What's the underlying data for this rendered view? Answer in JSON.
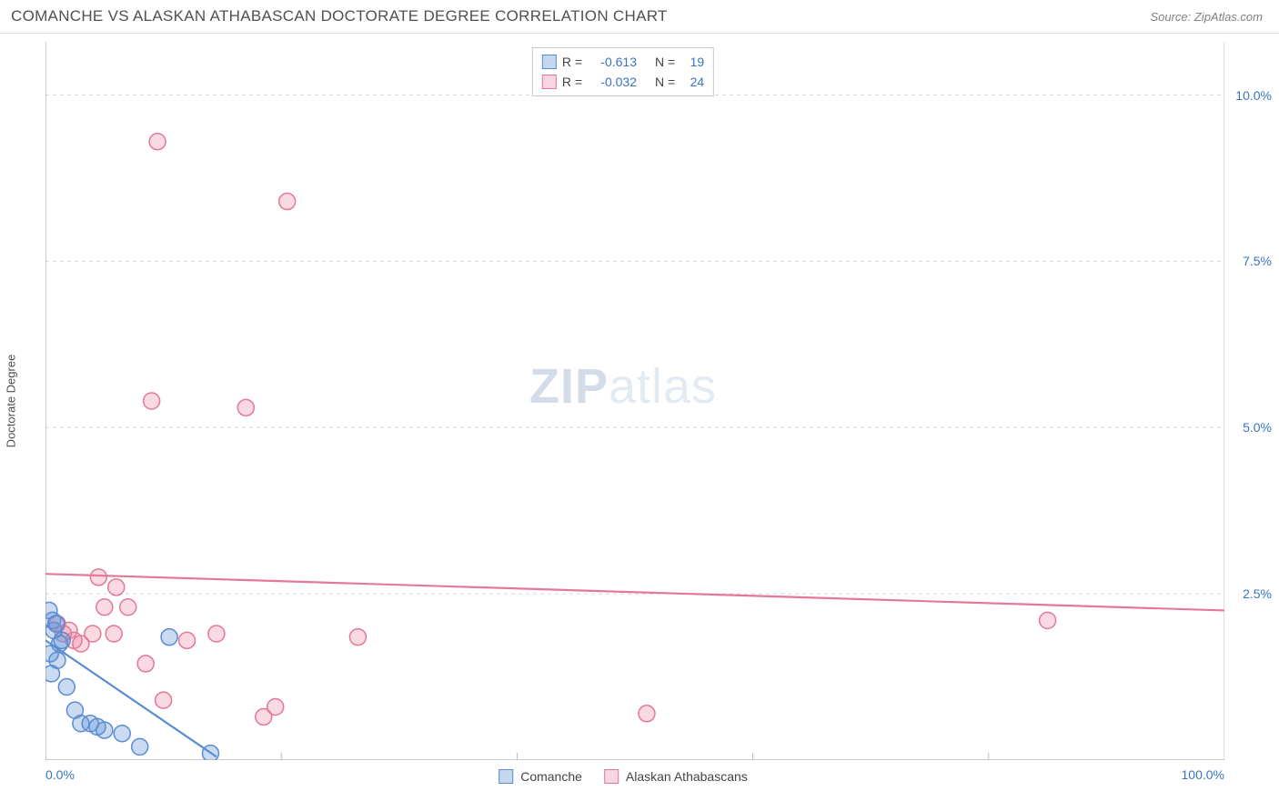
{
  "header": {
    "title": "COMANCHE VS ALASKAN ATHABASCAN DOCTORATE DEGREE CORRELATION CHART",
    "source_prefix": "Source: ",
    "source_name": "ZipAtlas.com"
  },
  "watermark": {
    "zip": "ZIP",
    "atlas": "atlas"
  },
  "chart": {
    "type": "scatter",
    "ylabel": "Doctorate Degree",
    "xlim": [
      0,
      100
    ],
    "ylim": [
      0,
      10.8
    ],
    "ymax_data": 10.8,
    "xtick_labels": {
      "min": "0.0%",
      "max": "100.0%"
    },
    "ytick_positions": [
      2.5,
      5.0,
      7.5,
      10.0
    ],
    "ytick_labels": [
      "2.5%",
      "5.0%",
      "7.5%",
      "10.0%"
    ],
    "grid_dash": "4,4",
    "grid_color": "#d8d8d8",
    "axis_color": "#bcbcbc",
    "background_color": "#ffffff",
    "xtick_minor_count": 5,
    "marker_radius": 9,
    "marker_stroke_width": 1.5,
    "line_width_blue": 2.2,
    "line_width_pink": 2.2,
    "series": {
      "comanche": {
        "label": "Comanche",
        "fill": "rgba(100,150,215,0.35)",
        "stroke": "#5a8cd2",
        "points": [
          [
            0.3,
            2.25
          ],
          [
            0.6,
            2.1
          ],
          [
            0.7,
            1.95
          ],
          [
            0.9,
            2.05
          ],
          [
            1.2,
            1.75
          ],
          [
            1.4,
            1.8
          ],
          [
            0.4,
            1.6
          ],
          [
            1.0,
            1.5
          ],
          [
            0.5,
            1.3
          ],
          [
            1.8,
            1.1
          ],
          [
            2.5,
            0.75
          ],
          [
            3.0,
            0.55
          ],
          [
            3.8,
            0.55
          ],
          [
            4.4,
            0.5
          ],
          [
            5.0,
            0.45
          ],
          [
            6.5,
            0.4
          ],
          [
            8.0,
            0.2
          ],
          [
            10.5,
            1.85
          ],
          [
            14.0,
            0.1
          ]
        ],
        "trend": {
          "x1": 0,
          "y1": 1.8,
          "x2": 14.5,
          "y2": 0.05
        }
      },
      "athabascan": {
        "label": "Alaskan Athabascans",
        "fill": "rgba(235,130,160,0.30)",
        "stroke": "#e47896",
        "points": [
          [
            1.0,
            2.05
          ],
          [
            2.0,
            1.95
          ],
          [
            2.4,
            1.8
          ],
          [
            4.0,
            1.9
          ],
          [
            5.0,
            2.3
          ],
          [
            4.5,
            2.75
          ],
          [
            6.0,
            2.6
          ],
          [
            7.0,
            2.3
          ],
          [
            5.8,
            1.9
          ],
          [
            8.5,
            1.45
          ],
          [
            10.0,
            0.9
          ],
          [
            12.0,
            1.8
          ],
          [
            14.5,
            1.9
          ],
          [
            18.5,
            0.65
          ],
          [
            19.5,
            0.8
          ],
          [
            26.5,
            1.85
          ],
          [
            9.0,
            5.4
          ],
          [
            17.0,
            5.3
          ],
          [
            20.5,
            8.4
          ],
          [
            9.5,
            9.3
          ],
          [
            51.0,
            0.7
          ],
          [
            85.0,
            2.1
          ],
          [
            3.0,
            1.75
          ],
          [
            1.5,
            1.9
          ]
        ],
        "trend": {
          "x1": 0,
          "y1": 2.8,
          "x2": 100,
          "y2": 2.25
        }
      }
    }
  },
  "legend_top": {
    "rows": [
      {
        "swatch": "blue",
        "r_label": "R =",
        "r_val": "-0.613",
        "n_label": "N =",
        "n_val": "19"
      },
      {
        "swatch": "pink",
        "r_label": "R =",
        "r_val": "-0.032",
        "n_label": "N =",
        "n_val": "24"
      }
    ]
  },
  "legend_bottom": {
    "items": [
      {
        "swatch": "blue",
        "label": "Comanche"
      },
      {
        "swatch": "pink",
        "label": "Alaskan Athabascans"
      }
    ]
  }
}
